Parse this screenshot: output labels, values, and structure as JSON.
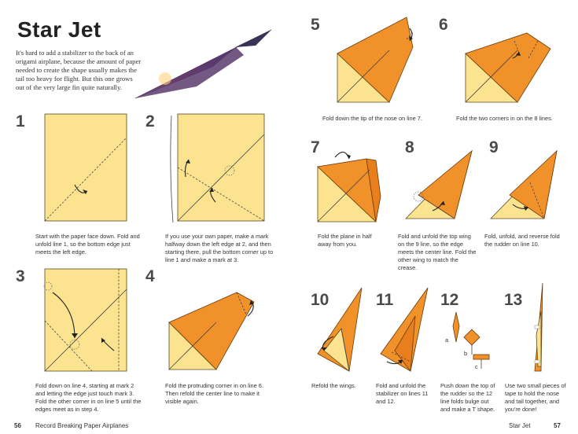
{
  "header": {
    "title": "Star Jet",
    "intro": "It's hard to add a stabilizer to the back of an origami airplane, because the amount of paper needed to create the shape usually makes the tail too heavy for flight. But this one grows out of the very large fin quite naturally."
  },
  "steps": [
    {
      "number": "1",
      "caption": "Start with the paper face down. Fold and unfold line 1, so the bottom edge just meets the left edge."
    },
    {
      "number": "2",
      "caption": "If you use your own paper, make a mark halfway down the left edge at 2, and then starting there, pull the bottom corner up to line 1 and make a mark at 3."
    },
    {
      "number": "3",
      "caption": "Fold down on line 4, starting at mark 2 and letting the edge just touch mark 3. Fold the other corner in on line 5 until the edges meet as in step 4."
    },
    {
      "number": "4",
      "caption": "Fold the protruding corner in on line 6. Then refold the center line to make it visible again."
    },
    {
      "number": "5",
      "caption": "Fold down the tip of the nose on line 7."
    },
    {
      "number": "6",
      "caption": "Fold the two corners in on the 8 lines."
    },
    {
      "number": "7",
      "caption": "Fold the plane in half away from you."
    },
    {
      "number": "8",
      "caption": "Fold and unfold the top wing on the 9 line, so the edge meets the center line. Fold the other wing to match the crease."
    },
    {
      "number": "9",
      "caption": "Fold, unfold, and reverse fold the rudder on line 10."
    },
    {
      "number": "10",
      "caption": "Refold the wings."
    },
    {
      "number": "11",
      "caption": "Fold and unfold the stabilizer on lines 11 and 12."
    },
    {
      "number": "12",
      "caption": "Push down the top of the rudder so the 12 line folds bulge out and make a T shape."
    },
    {
      "number": "13",
      "caption": "Use two small pieces of tape to hold the nose and tail together, and you're done!"
    }
  ],
  "step12_labels": {
    "a": "a",
    "b": "b",
    "c": "c"
  },
  "footer": {
    "left_page": "56",
    "left_title": "Record Breaking Paper Airplanes",
    "right_title": "Star Jet",
    "right_page": "57"
  },
  "colors": {
    "paper": "#fbe38f",
    "fold": "#f0912a",
    "text": "#333333"
  }
}
